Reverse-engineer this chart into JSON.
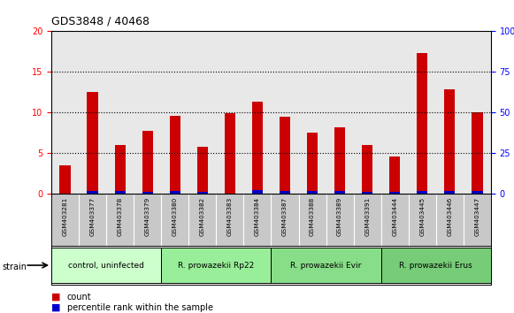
{
  "title": "GDS3848 / 40468",
  "samples": [
    "GSM403281",
    "GSM403377",
    "GSM403378",
    "GSM403379",
    "GSM403380",
    "GSM403382",
    "GSM403383",
    "GSM403384",
    "GSM403387",
    "GSM403388",
    "GSM403389",
    "GSM403391",
    "GSM403444",
    "GSM403445",
    "GSM403446",
    "GSM403447"
  ],
  "count_values": [
    3.5,
    12.6,
    6.0,
    7.8,
    9.6,
    5.8,
    9.9,
    11.4,
    9.5,
    7.6,
    8.2,
    6.0,
    4.6,
    17.3,
    12.9,
    10.0
  ],
  "percentile_values": [
    0.4,
    2.0,
    1.7,
    1.4,
    2.0,
    1.4,
    0.5,
    2.3,
    1.9,
    1.8,
    1.9,
    1.3,
    1.1,
    1.9,
    2.0,
    1.9
  ],
  "ylim_left": [
    0,
    20
  ],
  "ylim_right": [
    0,
    100
  ],
  "yticks_left": [
    0,
    5,
    10,
    15,
    20
  ],
  "yticks_right": [
    0,
    25,
    50,
    75,
    100
  ],
  "ytick_labels_right": [
    "0",
    "25",
    "50",
    "75",
    "100%"
  ],
  "bar_color_count": "#cc0000",
  "bar_color_percentile": "#0000cc",
  "bar_width": 0.4,
  "groups": [
    {
      "label": "control, uninfected",
      "samples": [
        "GSM403281",
        "GSM403377",
        "GSM403378",
        "GSM403379"
      ],
      "color": "#ccffcc"
    },
    {
      "label": "R. prowazekii Rp22",
      "samples": [
        "GSM403380",
        "GSM403382",
        "GSM403383",
        "GSM403384"
      ],
      "color": "#99ee99"
    },
    {
      "label": "R. prowazekii Evir",
      "samples": [
        "GSM403387",
        "GSM403388",
        "GSM403389",
        "GSM403391"
      ],
      "color": "#88dd88"
    },
    {
      "label": "R. prowazekii Erus",
      "samples": [
        "GSM403444",
        "GSM403445",
        "GSM403446",
        "GSM403447"
      ],
      "color": "#77cc77"
    }
  ],
  "strain_label": "strain",
  "legend_count_label": "count",
  "legend_percentile_label": "percentile rank within the sample",
  "axis_bg_color": "#e8e8e8",
  "header_bg_color": "#c8c8c8"
}
